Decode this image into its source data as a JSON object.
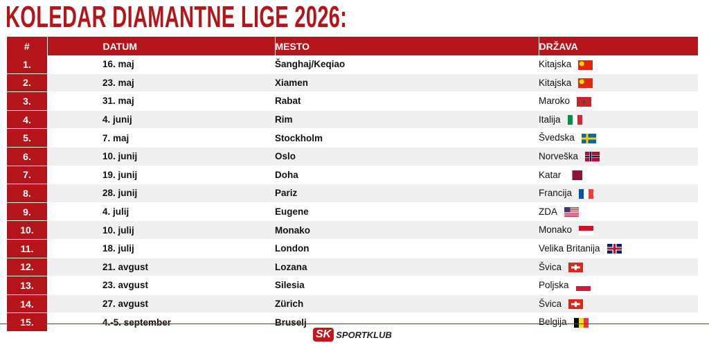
{
  "header": {
    "title": "KOLEDAR DIAMANTNE LIGE 2026:"
  },
  "table": {
    "columns": [
      "#",
      "DATUM",
      "MESTO",
      "DRŽAVA"
    ],
    "rows": [
      [
        "1.",
        "16. maj",
        "Šanghaj/Keqiao",
        "Kitajska"
      ],
      [
        "2.",
        "23. maj",
        "Xiamen",
        "Kitajska"
      ],
      [
        "3.",
        "31. maj",
        "Rabat",
        "Maroko"
      ],
      [
        "4.",
        "4. junij",
        "Rim",
        "Italija"
      ],
      [
        "5.",
        "7. maj",
        "Stockholm",
        "Švedska"
      ],
      [
        "6.",
        "10. junij",
        "Oslo",
        "Norveška"
      ],
      [
        "7.",
        "19. junij",
        "Doha",
        "Katar"
      ],
      [
        "8.",
        "28. junij",
        "Pariz",
        "Francija"
      ],
      [
        "9.",
        "4. julij",
        "Eugene",
        "ZDA"
      ],
      [
        "10.",
        "10. julij",
        "Monako",
        "Monako"
      ],
      [
        "11.",
        "18. julij",
        "London",
        "Velika Britanija"
      ],
      [
        "12.",
        "21. avgust",
        "Lozana",
        "Švica"
      ],
      [
        "13.",
        "23. avgust",
        "Silesia",
        "Poljska"
      ],
      [
        "14.",
        "27. avgust",
        "Zürich",
        "Švica"
      ],
      [
        "15.",
        "4.-5. september",
        "Bruselj",
        "Belgija"
      ]
    ]
  },
  "footer": {
    "logo_badge": "SK",
    "logo_text": "SPORTKLUB"
  }
}
